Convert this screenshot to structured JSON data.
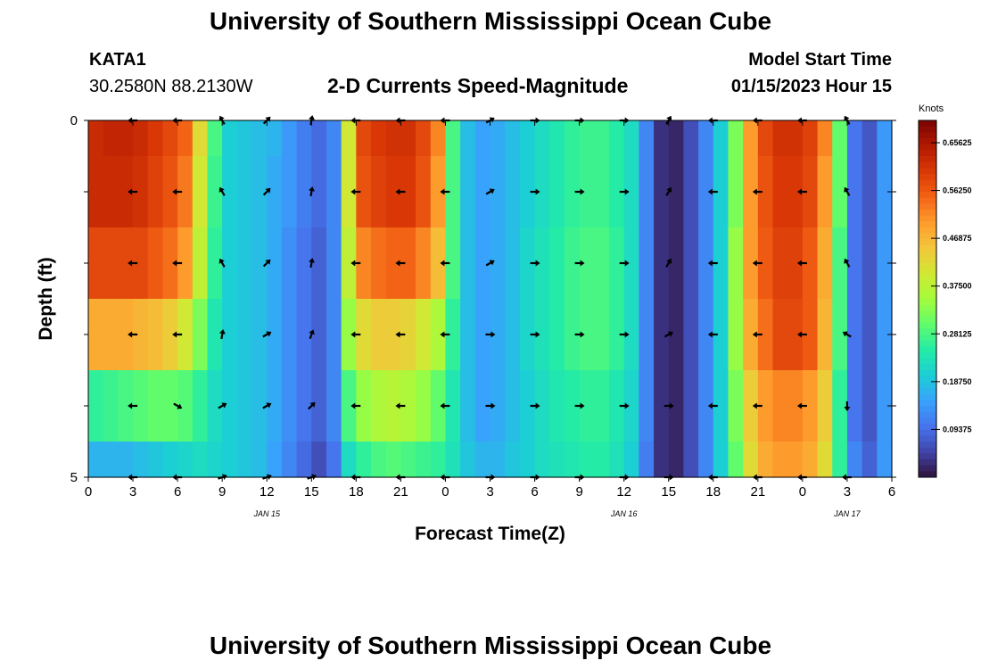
{
  "header": {
    "title": "University of Southern Mississippi Ocean Cube",
    "station": "KATA1",
    "coords": "30.2580N  88.2130W",
    "subtitle": "2-D Currents Speed-Magnitude",
    "model_label": "Model Start Time",
    "model_time": "01/15/2023 Hour 15"
  },
  "footer": {
    "title": "University of Southern Mississippi Ocean Cube"
  },
  "chart_data": {
    "type": "heatmap",
    "title": "2-D Currents Speed-Magnitude",
    "xlabel": "Forecast Time(Z)",
    "ylabel": "Depth (ft)",
    "x_ticks": [
      "0",
      "3",
      "6",
      "9",
      "12",
      "15",
      "18",
      "21",
      "0",
      "3",
      "6",
      "9",
      "12",
      "15",
      "18",
      "21",
      "0",
      "3",
      "6"
    ],
    "x_range_hours": [
      0,
      54
    ],
    "y_ticks": [
      "0",
      "5"
    ],
    "y_range": [
      0,
      5
    ],
    "date_labels": [
      {
        "text": "JAN 15",
        "hour": 12
      },
      {
        "text": "JAN 16",
        "hour": 36
      },
      {
        "text": "JAN 17",
        "hour": 51
      }
    ],
    "colorbar": {
      "unit": "Knots",
      "ticks": [
        "0.65625",
        "0.56250",
        "0.46875",
        "0.37500",
        "0.28125",
        "0.18750",
        "0.09375"
      ],
      "range": [
        0,
        0.7
      ],
      "colors": [
        "#30123b",
        "#4145ab",
        "#4675ed",
        "#39a2fc",
        "#1bcfd4",
        "#24eca6",
        "#61fc6c",
        "#a4fc3b",
        "#d1e834",
        "#f3c63a",
        "#fe9b2d",
        "#f36315",
        "#d93806",
        "#b11901",
        "#7a0402"
      ]
    },
    "depth_bands": [
      0.5,
      1.5,
      2.5,
      3.5,
      4.5,
      5.0
    ],
    "column_hours": [
      0,
      1,
      2,
      3,
      4,
      5,
      6,
      7,
      8,
      9,
      10,
      11,
      12,
      13,
      14,
      15,
      16,
      17,
      18,
      19,
      20,
      21,
      22,
      23,
      24,
      25,
      26,
      27,
      28,
      29,
      30,
      31,
      32,
      33,
      34,
      35,
      36,
      37,
      38,
      39,
      40,
      41,
      42,
      43,
      44,
      45,
      46,
      47,
      48,
      49,
      50,
      51,
      52,
      53
    ],
    "speed_by_row": [
      [
        0.62,
        0.63,
        0.63,
        0.62,
        0.6,
        0.58,
        0.55,
        0.42,
        0.28,
        0.2,
        0.19,
        0.18,
        0.17,
        0.14,
        0.11,
        0.09,
        0.12,
        0.4,
        0.58,
        0.6,
        0.61,
        0.61,
        0.58,
        0.52,
        0.28,
        0.18,
        0.15,
        0.16,
        0.18,
        0.2,
        0.22,
        0.24,
        0.26,
        0.27,
        0.27,
        0.25,
        0.22,
        0.12,
        0.03,
        0.02,
        0.06,
        0.12,
        0.2,
        0.32,
        0.5,
        0.58,
        0.61,
        0.61,
        0.59,
        0.52,
        0.3,
        0.1,
        0.07,
        0.14
      ],
      [
        0.62,
        0.62,
        0.62,
        0.61,
        0.59,
        0.57,
        0.53,
        0.4,
        0.27,
        0.2,
        0.19,
        0.18,
        0.16,
        0.14,
        0.11,
        0.09,
        0.12,
        0.4,
        0.57,
        0.59,
        0.6,
        0.6,
        0.57,
        0.5,
        0.28,
        0.18,
        0.15,
        0.16,
        0.18,
        0.2,
        0.22,
        0.24,
        0.26,
        0.27,
        0.27,
        0.25,
        0.22,
        0.12,
        0.03,
        0.02,
        0.06,
        0.12,
        0.2,
        0.32,
        0.5,
        0.57,
        0.6,
        0.6,
        0.58,
        0.5,
        0.3,
        0.1,
        0.07,
        0.14
      ],
      [
        0.58,
        0.58,
        0.58,
        0.58,
        0.56,
        0.54,
        0.5,
        0.38,
        0.26,
        0.2,
        0.19,
        0.18,
        0.16,
        0.13,
        0.1,
        0.08,
        0.12,
        0.38,
        0.52,
        0.54,
        0.55,
        0.55,
        0.52,
        0.46,
        0.28,
        0.18,
        0.15,
        0.16,
        0.18,
        0.21,
        0.23,
        0.25,
        0.27,
        0.28,
        0.28,
        0.26,
        0.22,
        0.12,
        0.03,
        0.02,
        0.06,
        0.12,
        0.2,
        0.34,
        0.5,
        0.56,
        0.59,
        0.59,
        0.56,
        0.48,
        0.28,
        0.1,
        0.07,
        0.14
      ],
      [
        0.48,
        0.48,
        0.48,
        0.47,
        0.46,
        0.44,
        0.4,
        0.32,
        0.24,
        0.2,
        0.19,
        0.18,
        0.16,
        0.13,
        0.1,
        0.08,
        0.12,
        0.34,
        0.42,
        0.44,
        0.44,
        0.43,
        0.4,
        0.36,
        0.26,
        0.18,
        0.15,
        0.16,
        0.18,
        0.21,
        0.23,
        0.25,
        0.27,
        0.28,
        0.28,
        0.26,
        0.22,
        0.12,
        0.03,
        0.02,
        0.06,
        0.12,
        0.2,
        0.34,
        0.48,
        0.54,
        0.58,
        0.58,
        0.56,
        0.47,
        0.28,
        0.1,
        0.07,
        0.14
      ],
      [
        0.26,
        0.27,
        0.28,
        0.29,
        0.3,
        0.3,
        0.29,
        0.26,
        0.22,
        0.2,
        0.19,
        0.18,
        0.16,
        0.13,
        0.1,
        0.08,
        0.12,
        0.28,
        0.34,
        0.36,
        0.37,
        0.36,
        0.34,
        0.3,
        0.24,
        0.18,
        0.15,
        0.16,
        0.18,
        0.2,
        0.22,
        0.24,
        0.25,
        0.26,
        0.26,
        0.24,
        0.21,
        0.12,
        0.03,
        0.02,
        0.06,
        0.12,
        0.2,
        0.32,
        0.44,
        0.5,
        0.52,
        0.52,
        0.5,
        0.44,
        0.26,
        0.1,
        0.07,
        0.14
      ],
      [
        0.17,
        0.17,
        0.17,
        0.18,
        0.19,
        0.2,
        0.21,
        0.22,
        0.21,
        0.2,
        0.19,
        0.18,
        0.15,
        0.12,
        0.09,
        0.06,
        0.1,
        0.22,
        0.26,
        0.28,
        0.29,
        0.28,
        0.27,
        0.26,
        0.23,
        0.19,
        0.17,
        0.17,
        0.19,
        0.2,
        0.22,
        0.23,
        0.24,
        0.25,
        0.25,
        0.23,
        0.2,
        0.11,
        0.03,
        0.02,
        0.06,
        0.12,
        0.2,
        0.3,
        0.42,
        0.48,
        0.5,
        0.5,
        0.48,
        0.42,
        0.26,
        0.12,
        0.08,
        0.14
      ]
    ],
    "arrow_hours": [
      3,
      6,
      9,
      12,
      15,
      18,
      21,
      24,
      27,
      30,
      33,
      36,
      39,
      42,
      45,
      48,
      51
    ],
    "arrow_depths": [
      0,
      1,
      2,
      3,
      4,
      5
    ],
    "arrow_dir_deg": [
      [
        180,
        180,
        120,
        45,
        80,
        180,
        180,
        180,
        30,
        0,
        0,
        0,
        60,
        180,
        180,
        180,
        120
      ],
      [
        180,
        180,
        120,
        45,
        80,
        180,
        180,
        180,
        30,
        0,
        0,
        0,
        60,
        180,
        180,
        180,
        120
      ],
      [
        180,
        180,
        120,
        45,
        80,
        180,
        180,
        180,
        30,
        0,
        0,
        0,
        60,
        180,
        180,
        180,
        120
      ],
      [
        180,
        180,
        80,
        30,
        70,
        180,
        180,
        180,
        0,
        0,
        0,
        0,
        30,
        180,
        180,
        180,
        150
      ],
      [
        180,
        -30,
        30,
        30,
        45,
        180,
        180,
        180,
        0,
        0,
        0,
        0,
        0,
        180,
        180,
        180,
        -90
      ],
      [
        180,
        180,
        20,
        20,
        20,
        180,
        180,
        180,
        0,
        0,
        0,
        0,
        0,
        180,
        180,
        180,
        180
      ]
    ]
  }
}
